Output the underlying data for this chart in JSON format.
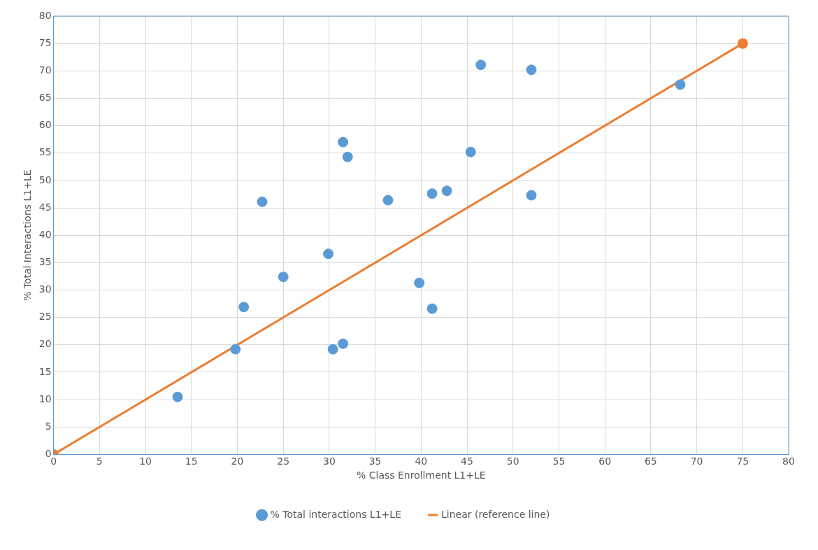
{
  "chart_data": {
    "type": "scatter",
    "xlabel": "% Class Enrollment L1+LE",
    "ylabel": "% Total Interactions L1+LE",
    "xlim": [
      0,
      80
    ],
    "xticks": [
      0,
      5,
      10,
      15,
      20,
      25,
      30,
      35,
      40,
      45,
      50,
      55,
      60,
      65,
      70,
      75,
      80
    ],
    "ylim": [
      0,
      80
    ],
    "yticks": [
      0,
      5,
      10,
      15,
      20,
      25,
      30,
      35,
      40,
      45,
      50,
      55,
      60,
      65,
      70,
      75,
      80
    ],
    "grid": true,
    "legend": "bottom",
    "marker": "circle",
    "series": [
      {
        "name": "% Total interactions L1+LE",
        "color": "#5b9bd5",
        "type": "scatter",
        "x": [
          13.5,
          19.8,
          20.7,
          22.7,
          25.0,
          29.9,
          30.4,
          31.5,
          31.5,
          32.0,
          36.4,
          39.8,
          41.2,
          41.2,
          42.8,
          45.4,
          46.5,
          52.0,
          52.0,
          68.2
        ],
        "values": [
          10.5,
          19.2,
          26.9,
          46.1,
          32.4,
          36.6,
          19.2,
          57.0,
          20.2,
          54.3,
          46.4,
          31.3,
          47.6,
          26.6,
          48.1,
          55.2,
          71.1,
          70.2,
          47.3,
          67.5
        ]
      },
      {
        "name": "Linear (reference line)",
        "color": "#ed7d31",
        "type": "line",
        "x": [
          0,
          75
        ],
        "values": [
          0,
          75
        ],
        "line_style": "solid"
      }
    ]
  }
}
